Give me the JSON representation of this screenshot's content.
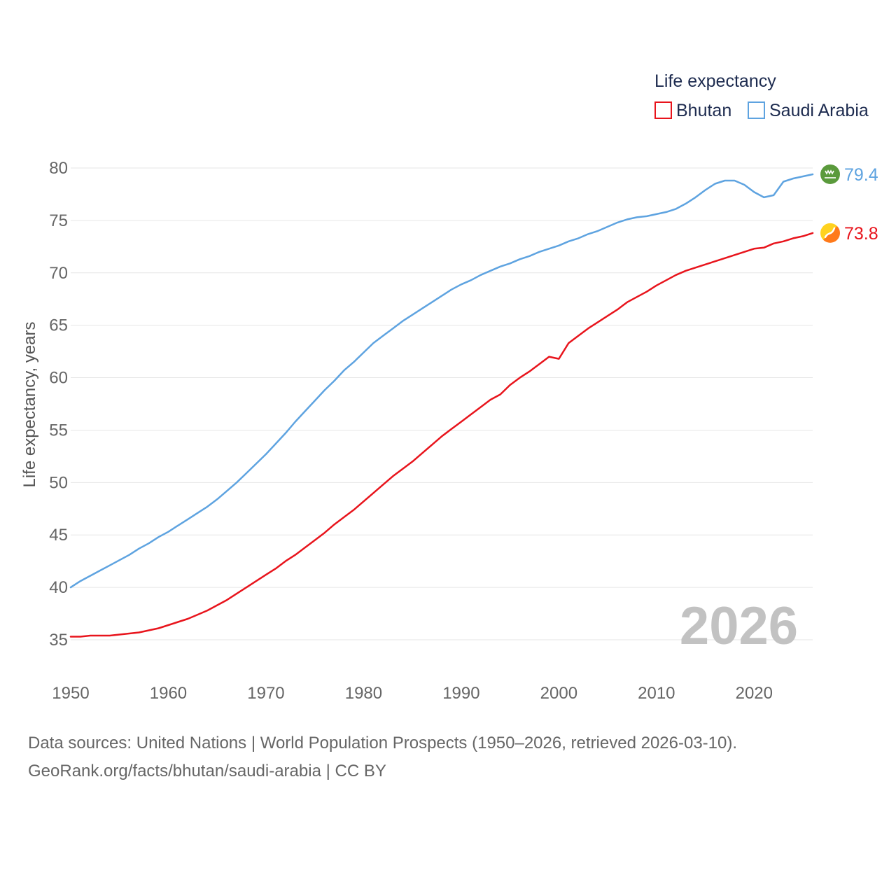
{
  "chart_data": {
    "type": "line",
    "ylabel": "Life expectancy, years",
    "xlabel": "",
    "xlim": [
      1950,
      2026
    ],
    "ylim": [
      32,
      81
    ],
    "x_ticks": [
      "1950",
      "1960",
      "1970",
      "1980",
      "1990",
      "2000",
      "2010",
      "2020"
    ],
    "y_ticks": [
      "35",
      "40",
      "45",
      "50",
      "55",
      "60",
      "65",
      "70",
      "75",
      "80"
    ],
    "legend": {
      "title": "Life expectancy",
      "position": "top-right",
      "entries": [
        "Bhutan",
        "Saudi Arabia"
      ]
    },
    "watermark_year": "2026",
    "series": [
      {
        "name": "Saudi Arabia",
        "color": "#5ea3e0",
        "end_label": "79.4",
        "flag_icon": "saudi-arabia-flag-icon",
        "x": [
          1950,
          1951,
          1952,
          1953,
          1954,
          1955,
          1956,
          1957,
          1958,
          1959,
          1960,
          1961,
          1962,
          1963,
          1964,
          1965,
          1966,
          1967,
          1968,
          1969,
          1970,
          1971,
          1972,
          1973,
          1974,
          1975,
          1976,
          1977,
          1978,
          1979,
          1980,
          1981,
          1982,
          1983,
          1984,
          1985,
          1986,
          1987,
          1988,
          1989,
          1990,
          1991,
          1992,
          1993,
          1994,
          1995,
          1996,
          1997,
          1998,
          1999,
          2000,
          2001,
          2002,
          2003,
          2004,
          2005,
          2006,
          2007,
          2008,
          2009,
          2010,
          2011,
          2012,
          2013,
          2014,
          2015,
          2016,
          2017,
          2018,
          2019,
          2020,
          2021,
          2022,
          2023,
          2024,
          2025,
          2026
        ],
        "values": [
          40.0,
          40.6,
          41.1,
          41.6,
          42.1,
          42.6,
          43.1,
          43.7,
          44.2,
          44.8,
          45.3,
          45.9,
          46.5,
          47.1,
          47.7,
          48.4,
          49.2,
          50.0,
          50.9,
          51.8,
          52.7,
          53.7,
          54.7,
          55.8,
          56.8,
          57.8,
          58.8,
          59.7,
          60.7,
          61.5,
          62.4,
          63.3,
          64.0,
          64.7,
          65.4,
          66.0,
          66.6,
          67.2,
          67.8,
          68.4,
          68.9,
          69.3,
          69.8,
          70.2,
          70.6,
          70.9,
          71.3,
          71.6,
          72.0,
          72.3,
          72.6,
          73.0,
          73.3,
          73.7,
          74.0,
          74.4,
          74.8,
          75.1,
          75.3,
          75.4,
          75.6,
          75.8,
          76.1,
          76.6,
          77.2,
          77.9,
          78.5,
          78.8,
          78.8,
          78.4,
          77.7,
          77.2,
          77.4,
          78.7,
          79.0,
          79.2,
          79.4
        ]
      },
      {
        "name": "Bhutan",
        "color": "#e8141c",
        "end_label": "73.8",
        "flag_icon": "bhutan-flag-icon",
        "x": [
          1950,
          1951,
          1952,
          1953,
          1954,
          1955,
          1956,
          1957,
          1958,
          1959,
          1960,
          1961,
          1962,
          1963,
          1964,
          1965,
          1966,
          1967,
          1968,
          1969,
          1970,
          1971,
          1972,
          1973,
          1974,
          1975,
          1976,
          1977,
          1978,
          1979,
          1980,
          1981,
          1982,
          1983,
          1984,
          1985,
          1986,
          1987,
          1988,
          1989,
          1990,
          1991,
          1992,
          1993,
          1994,
          1995,
          1996,
          1997,
          1998,
          1999,
          2000,
          2001,
          2002,
          2003,
          2004,
          2005,
          2006,
          2007,
          2008,
          2009,
          2010,
          2011,
          2012,
          2013,
          2014,
          2015,
          2016,
          2017,
          2018,
          2019,
          2020,
          2021,
          2022,
          2023,
          2024,
          2025,
          2026
        ],
        "values": [
          35.3,
          35.3,
          35.4,
          35.4,
          35.4,
          35.5,
          35.6,
          35.7,
          35.9,
          36.1,
          36.4,
          36.7,
          37.0,
          37.4,
          37.8,
          38.3,
          38.8,
          39.4,
          40.0,
          40.6,
          41.2,
          41.8,
          42.5,
          43.1,
          43.8,
          44.5,
          45.2,
          46.0,
          46.7,
          47.4,
          48.2,
          49.0,
          49.8,
          50.6,
          51.3,
          52.0,
          52.8,
          53.6,
          54.4,
          55.1,
          55.8,
          56.5,
          57.2,
          57.9,
          58.4,
          59.3,
          60.0,
          60.6,
          61.3,
          62.0,
          61.8,
          63.3,
          64.0,
          64.7,
          65.3,
          65.9,
          66.5,
          67.2,
          67.7,
          68.2,
          68.8,
          69.3,
          69.8,
          70.2,
          70.5,
          70.8,
          71.1,
          71.4,
          71.7,
          72.0,
          72.3,
          72.4,
          72.8,
          73.0,
          73.3,
          73.5,
          73.8
        ]
      }
    ]
  },
  "footer": {
    "sources": "Data sources: United Nations | World Population Prospects (1950–2026, retrieved 2026-03-10).",
    "attribution": "GeoRank.org/facts/bhutan/saudi-arabia | CC BY"
  }
}
